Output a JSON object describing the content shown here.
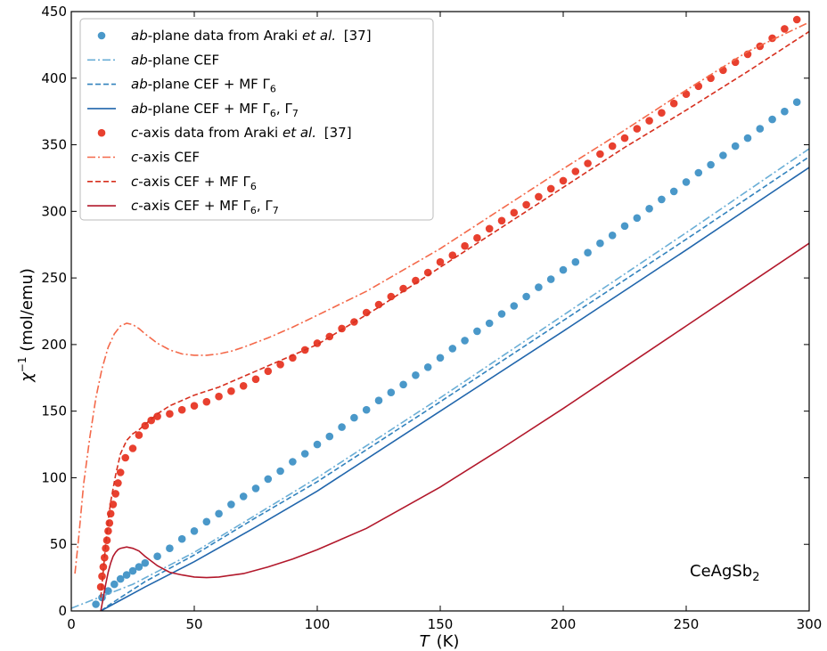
{
  "chart_data": {
    "type": "scatter",
    "title": "",
    "xlabel": {
      "var": "T",
      "unit": "(K)"
    },
    "ylabel": {
      "base": "χ",
      "sup": "−1",
      "rest": " (mol/emu)"
    },
    "xlim": [
      0,
      300
    ],
    "ylim": [
      0,
      450
    ],
    "xticks": [
      0,
      50,
      100,
      150,
      200,
      250,
      300
    ],
    "yticks": [
      0,
      50,
      100,
      150,
      200,
      250,
      300,
      350,
      400,
      450
    ],
    "grid": false,
    "legend_placement": "top-left",
    "annotation": {
      "main": "CeAgSb",
      "sub": "2"
    },
    "series": [
      {
        "name": {
          "pre": "",
          "it": "ab",
          "mid": "-plane data from Araki ",
          "it2": "et al.",
          "post": " [37]"
        },
        "kind": "points",
        "color": "#4a98c9",
        "x": [
          10,
          12.5,
          15,
          17.5,
          20,
          22.5,
          25,
          27.5,
          30,
          35,
          40,
          45,
          50,
          55,
          60,
          65,
          70,
          75,
          80,
          85,
          90,
          95,
          100,
          105,
          110,
          115,
          120,
          125,
          130,
          135,
          140,
          145,
          150,
          155,
          160,
          165,
          170,
          175,
          180,
          185,
          190,
          195,
          200,
          205,
          210,
          215,
          220,
          225,
          230,
          235,
          240,
          245,
          250,
          255,
          260,
          265,
          270,
          275,
          280,
          285,
          290,
          295
        ],
        "y": [
          5,
          10,
          15,
          20,
          24,
          27,
          30,
          33,
          36,
          41,
          47,
          54,
          60,
          67,
          73,
          80,
          86,
          92,
          99,
          105,
          112,
          118,
          125,
          131,
          138,
          145,
          151,
          158,
          164,
          170,
          177,
          183,
          190,
          197,
          203,
          210,
          216,
          223,
          229,
          236,
          243,
          249,
          256,
          262,
          269,
          276,
          282,
          289,
          295,
          302,
          309,
          315,
          322,
          329,
          335,
          342,
          349,
          355,
          362,
          369,
          375,
          382
        ]
      },
      {
        "name": {
          "pre": "",
          "it": "ab",
          "mid": "-plane CEF",
          "it2": "",
          "post": ""
        },
        "kind": "line",
        "dash": "dashdot",
        "color": "#6aaed6",
        "x": [
          0,
          25,
          50,
          75,
          100,
          150,
          200,
          250,
          300
        ],
        "y": [
          2,
          20,
          44,
          72,
          100,
          160,
          222,
          284,
          347
        ]
      },
      {
        "name": {
          "pre": "",
          "it": "ab",
          "mid": "-plane CEF + MF Γ",
          "sub": "6",
          "it2": "",
          "post": ""
        },
        "kind": "line",
        "dash": "dashed",
        "color": "#3282bd",
        "x": [
          12,
          15,
          20,
          25,
          30,
          50,
          75,
          100,
          150,
          200,
          250,
          300
        ],
        "y": [
          0,
          4,
          10,
          16,
          22,
          42,
          70,
          97,
          157,
          218,
          279,
          341
        ]
      },
      {
        "name": {
          "pre": "",
          "it": "ab",
          "mid": "-plane CEF + MF Γ",
          "sub": "6",
          "mid2": ", Γ",
          "sub2": "7",
          "it2": "",
          "post": ""
        },
        "kind": "line",
        "dash": "solid",
        "color": "#2166ac",
        "x": [
          12,
          15,
          20,
          25,
          30,
          50,
          75,
          100,
          150,
          200,
          250,
          300
        ],
        "y": [
          0,
          3,
          8,
          13,
          18,
          37,
          63,
          90,
          150,
          210,
          271,
          333
        ]
      },
      {
        "name": {
          "pre": "",
          "it": "c",
          "mid": "-axis data from Araki ",
          "it2": "et al.",
          "post": " [37]"
        },
        "kind": "points",
        "color": "#e8402f",
        "x": [
          12,
          12.5,
          13,
          13.5,
          14,
          14.5,
          15,
          15.5,
          16,
          17,
          18,
          19,
          20,
          22,
          25,
          27.5,
          30,
          32.5,
          35,
          40,
          45,
          50,
          55,
          60,
          65,
          70,
          75,
          80,
          85,
          90,
          95,
          100,
          105,
          110,
          115,
          120,
          125,
          130,
          135,
          140,
          145,
          150,
          155,
          160,
          165,
          170,
          175,
          180,
          185,
          190,
          195,
          200,
          205,
          210,
          215,
          220,
          225,
          230,
          235,
          240,
          245,
          250,
          255,
          260,
          265,
          270,
          275,
          280,
          285,
          290,
          295
        ],
        "y": [
          18,
          26,
          33,
          40,
          47,
          53,
          60,
          66,
          73,
          80,
          88,
          96,
          104,
          115,
          122,
          132,
          139,
          143,
          146,
          148,
          151,
          154,
          157,
          161,
          165,
          169,
          174,
          180,
          185,
          190,
          196,
          201,
          206,
          212,
          217,
          224,
          230,
          236,
          242,
          248,
          254,
          262,
          267,
          274,
          280,
          287,
          293,
          299,
          305,
          311,
          317,
          323,
          330,
          336,
          343,
          349,
          355,
          362,
          368,
          374,
          381,
          388,
          394,
          400,
          406,
          412,
          418,
          424,
          430,
          437,
          444
        ]
      },
      {
        "name": {
          "pre": "",
          "it": "c",
          "mid": "-axis CEF",
          "it2": "",
          "post": ""
        },
        "kind": "line",
        "dash": "dashdot",
        "color": "#f4694a",
        "x": [
          1.5,
          3,
          5,
          7.5,
          10,
          12.5,
          15,
          17.5,
          20,
          22.5,
          25,
          27.5,
          30,
          35,
          40,
          45,
          50,
          55,
          60,
          65,
          70,
          80,
          90,
          100,
          120,
          150,
          175,
          200,
          225,
          250,
          275,
          300
        ],
        "y": [
          28,
          55,
          95,
          130,
          160,
          182,
          198,
          208,
          214,
          216,
          215,
          212,
          208,
          201,
          196,
          193,
          192,
          192,
          193,
          195,
          198,
          205,
          213,
          222,
          240,
          272,
          302,
          332,
          361,
          391,
          420,
          442
        ]
      },
      {
        "name": {
          "pre": "",
          "it": "c",
          "mid": "-axis CEF + MF Γ",
          "sub": "6",
          "it2": "",
          "post": ""
        },
        "kind": "line",
        "dash": "dashed",
        "color": "#d7301f",
        "x": [
          12,
          13,
          14,
          15,
          16,
          18,
          20,
          22.5,
          25,
          27.5,
          30,
          35,
          40,
          50,
          60,
          75,
          100,
          125,
          150,
          175,
          200,
          225,
          250,
          275,
          300
        ],
        "y": [
          10,
          30,
          50,
          68,
          82,
          102,
          118,
          128,
          133,
          136,
          140,
          148,
          154,
          162,
          168,
          180,
          200,
          228,
          258,
          288,
          318,
          348,
          376,
          405,
          435
        ]
      },
      {
        "name": {
          "pre": "",
          "it": "c",
          "mid": "-axis CEF + MF Γ",
          "sub": "6",
          "mid2": ", Γ",
          "sub2": "7",
          "it2": "",
          "post": ""
        },
        "kind": "line",
        "dash": "solid",
        "color": "#b2182b",
        "x": [
          12,
          13,
          14,
          15,
          16,
          17,
          18,
          19,
          20,
          22.5,
          25,
          27.5,
          30,
          35,
          40,
          45,
          50,
          55,
          60,
          70,
          80,
          90,
          100,
          120,
          150,
          175,
          200,
          225,
          250,
          275,
          300
        ],
        "y": [
          0,
          10,
          20,
          29,
          36,
          41,
          44,
          46,
          47,
          48,
          47,
          45,
          41,
          34,
          29,
          27,
          25.5,
          25,
          25.5,
          28,
          33,
          39,
          46,
          62,
          93,
          122,
          152,
          183,
          214,
          245,
          276
        ]
      }
    ]
  }
}
